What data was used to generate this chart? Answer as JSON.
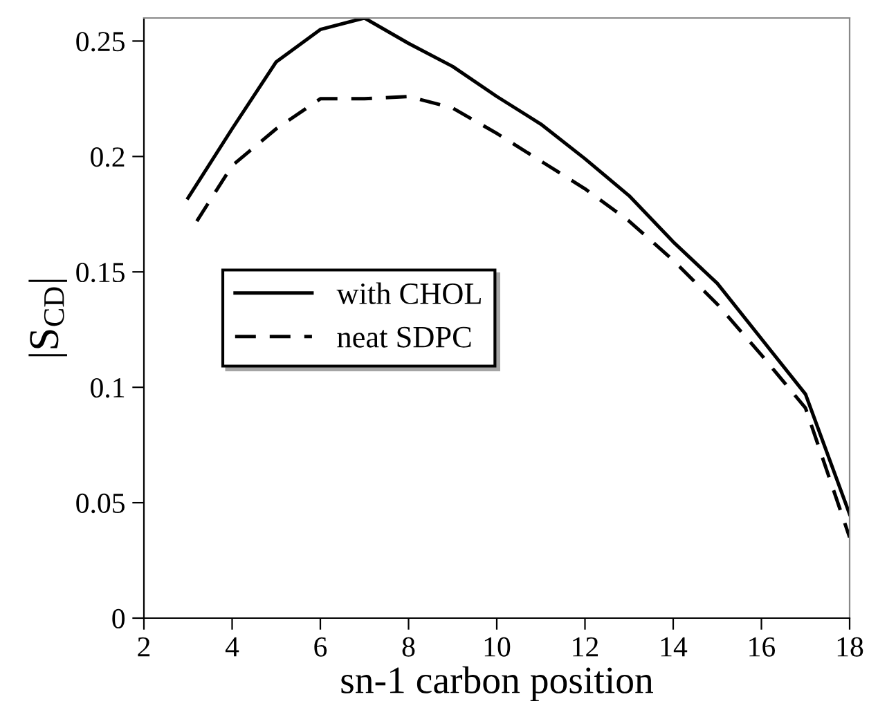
{
  "chart_data": {
    "type": "line",
    "xlabel": "sn-1 carbon position",
    "ylabel": "|S$_{CD}$|",
    "xlim": [
      2,
      18
    ],
    "xticks": [
      2,
      4,
      6,
      8,
      10,
      12,
      14,
      16,
      18
    ],
    "ylim": [
      0,
      0.26
    ],
    "yticks": [
      0,
      0.05,
      0.1,
      0.15,
      0.2,
      0.25
    ],
    "grid": false,
    "legend": "center left",
    "marker": "none",
    "series": [
      {
        "name": "with CHOL",
        "color": "#000000",
        "line_style": "solid",
        "x": [
          3,
          4,
          5,
          6,
          7,
          8,
          9,
          10,
          11,
          12,
          13,
          14,
          15,
          16,
          17,
          18
        ],
        "values": [
          0.182,
          0.212,
          0.241,
          0.255,
          0.26,
          0.249,
          0.239,
          0.226,
          0.214,
          0.199,
          0.183,
          0.163,
          0.145,
          0.121,
          0.097,
          0.045
        ]
      },
      {
        "name": "neat SDPC",
        "color": "#000000",
        "line_style": "dashed",
        "x": [
          3.2,
          4,
          5,
          6,
          7,
          8,
          9,
          10,
          11,
          12,
          13,
          14,
          15,
          16,
          17,
          18
        ],
        "values": [
          0.172,
          0.196,
          0.212,
          0.225,
          0.225,
          0.226,
          0.221,
          0.21,
          0.198,
          0.186,
          0.172,
          0.155,
          0.136,
          0.114,
          0.091,
          0.035
        ]
      }
    ]
  }
}
